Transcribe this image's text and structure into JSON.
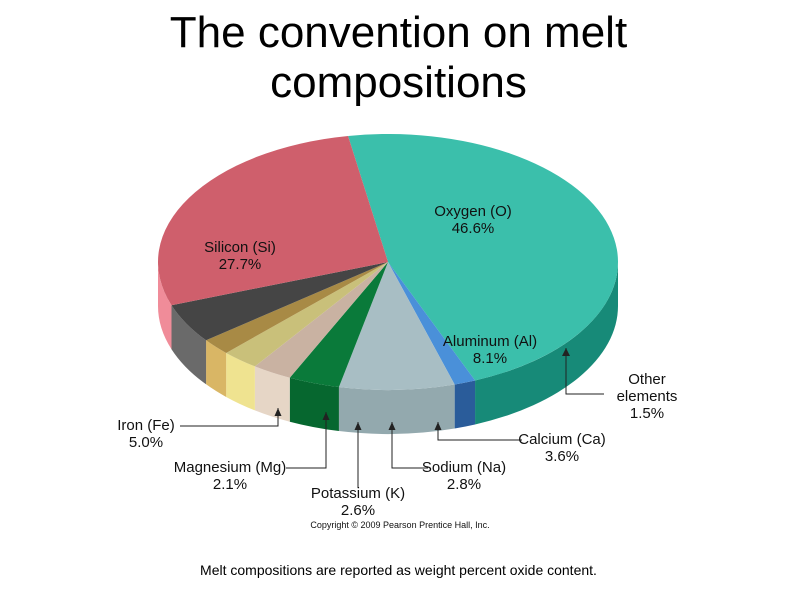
{
  "title_line1": "The convention on melt",
  "title_line2": "compositions",
  "caption": "Melt compositions are reported as weight percent oxide content.",
  "copyright": "Copyright © 2009 Pearson Prentice Hall, Inc.",
  "chart_data": {
    "type": "pie",
    "slices": [
      {
        "name": "Oxygen (O)",
        "value": 46.6,
        "pct_label": "46.6%",
        "color": "#3bbfab",
        "side": "#178a78"
      },
      {
        "name": "Other elements",
        "value": 1.5,
        "pct_label": "1.5%",
        "color": "#4a90d9",
        "side": "#2a5c9a"
      },
      {
        "name": "Aluminum (Al)",
        "value": 8.1,
        "pct_label": "8.1%",
        "color": "#a8bec4",
        "side": "#93a9ae"
      },
      {
        "name": "Calcium (Ca)",
        "value": 3.6,
        "pct_label": "3.6%",
        "color": "#0a7a3a",
        "side": "#06672f"
      },
      {
        "name": "Sodium (Na)",
        "value": 2.8,
        "pct_label": "2.8%",
        "color": "#c9b2a2",
        "side": "#e6d6c6"
      },
      {
        "name": "Potassium (K)",
        "value": 2.6,
        "pct_label": "2.6%",
        "color": "#c9c07a",
        "side": "#efe390"
      },
      {
        "name": "Magnesium (Mg)",
        "value": 2.1,
        "pct_label": "2.1%",
        "color": "#a88a45",
        "side": "#d9b665"
      },
      {
        "name": "Iron (Fe)",
        "value": 5.0,
        "pct_label": "5.0%",
        "color": "#454545",
        "side": "#6a6a6a"
      },
      {
        "name": "Silicon (Si)",
        "value": 27.7,
        "pct_label": "27.7%",
        "color": "#cf5f6c",
        "side": "#f08c99"
      }
    ],
    "other_elements_line1": "Other",
    "other_elements_line2": "elements"
  }
}
